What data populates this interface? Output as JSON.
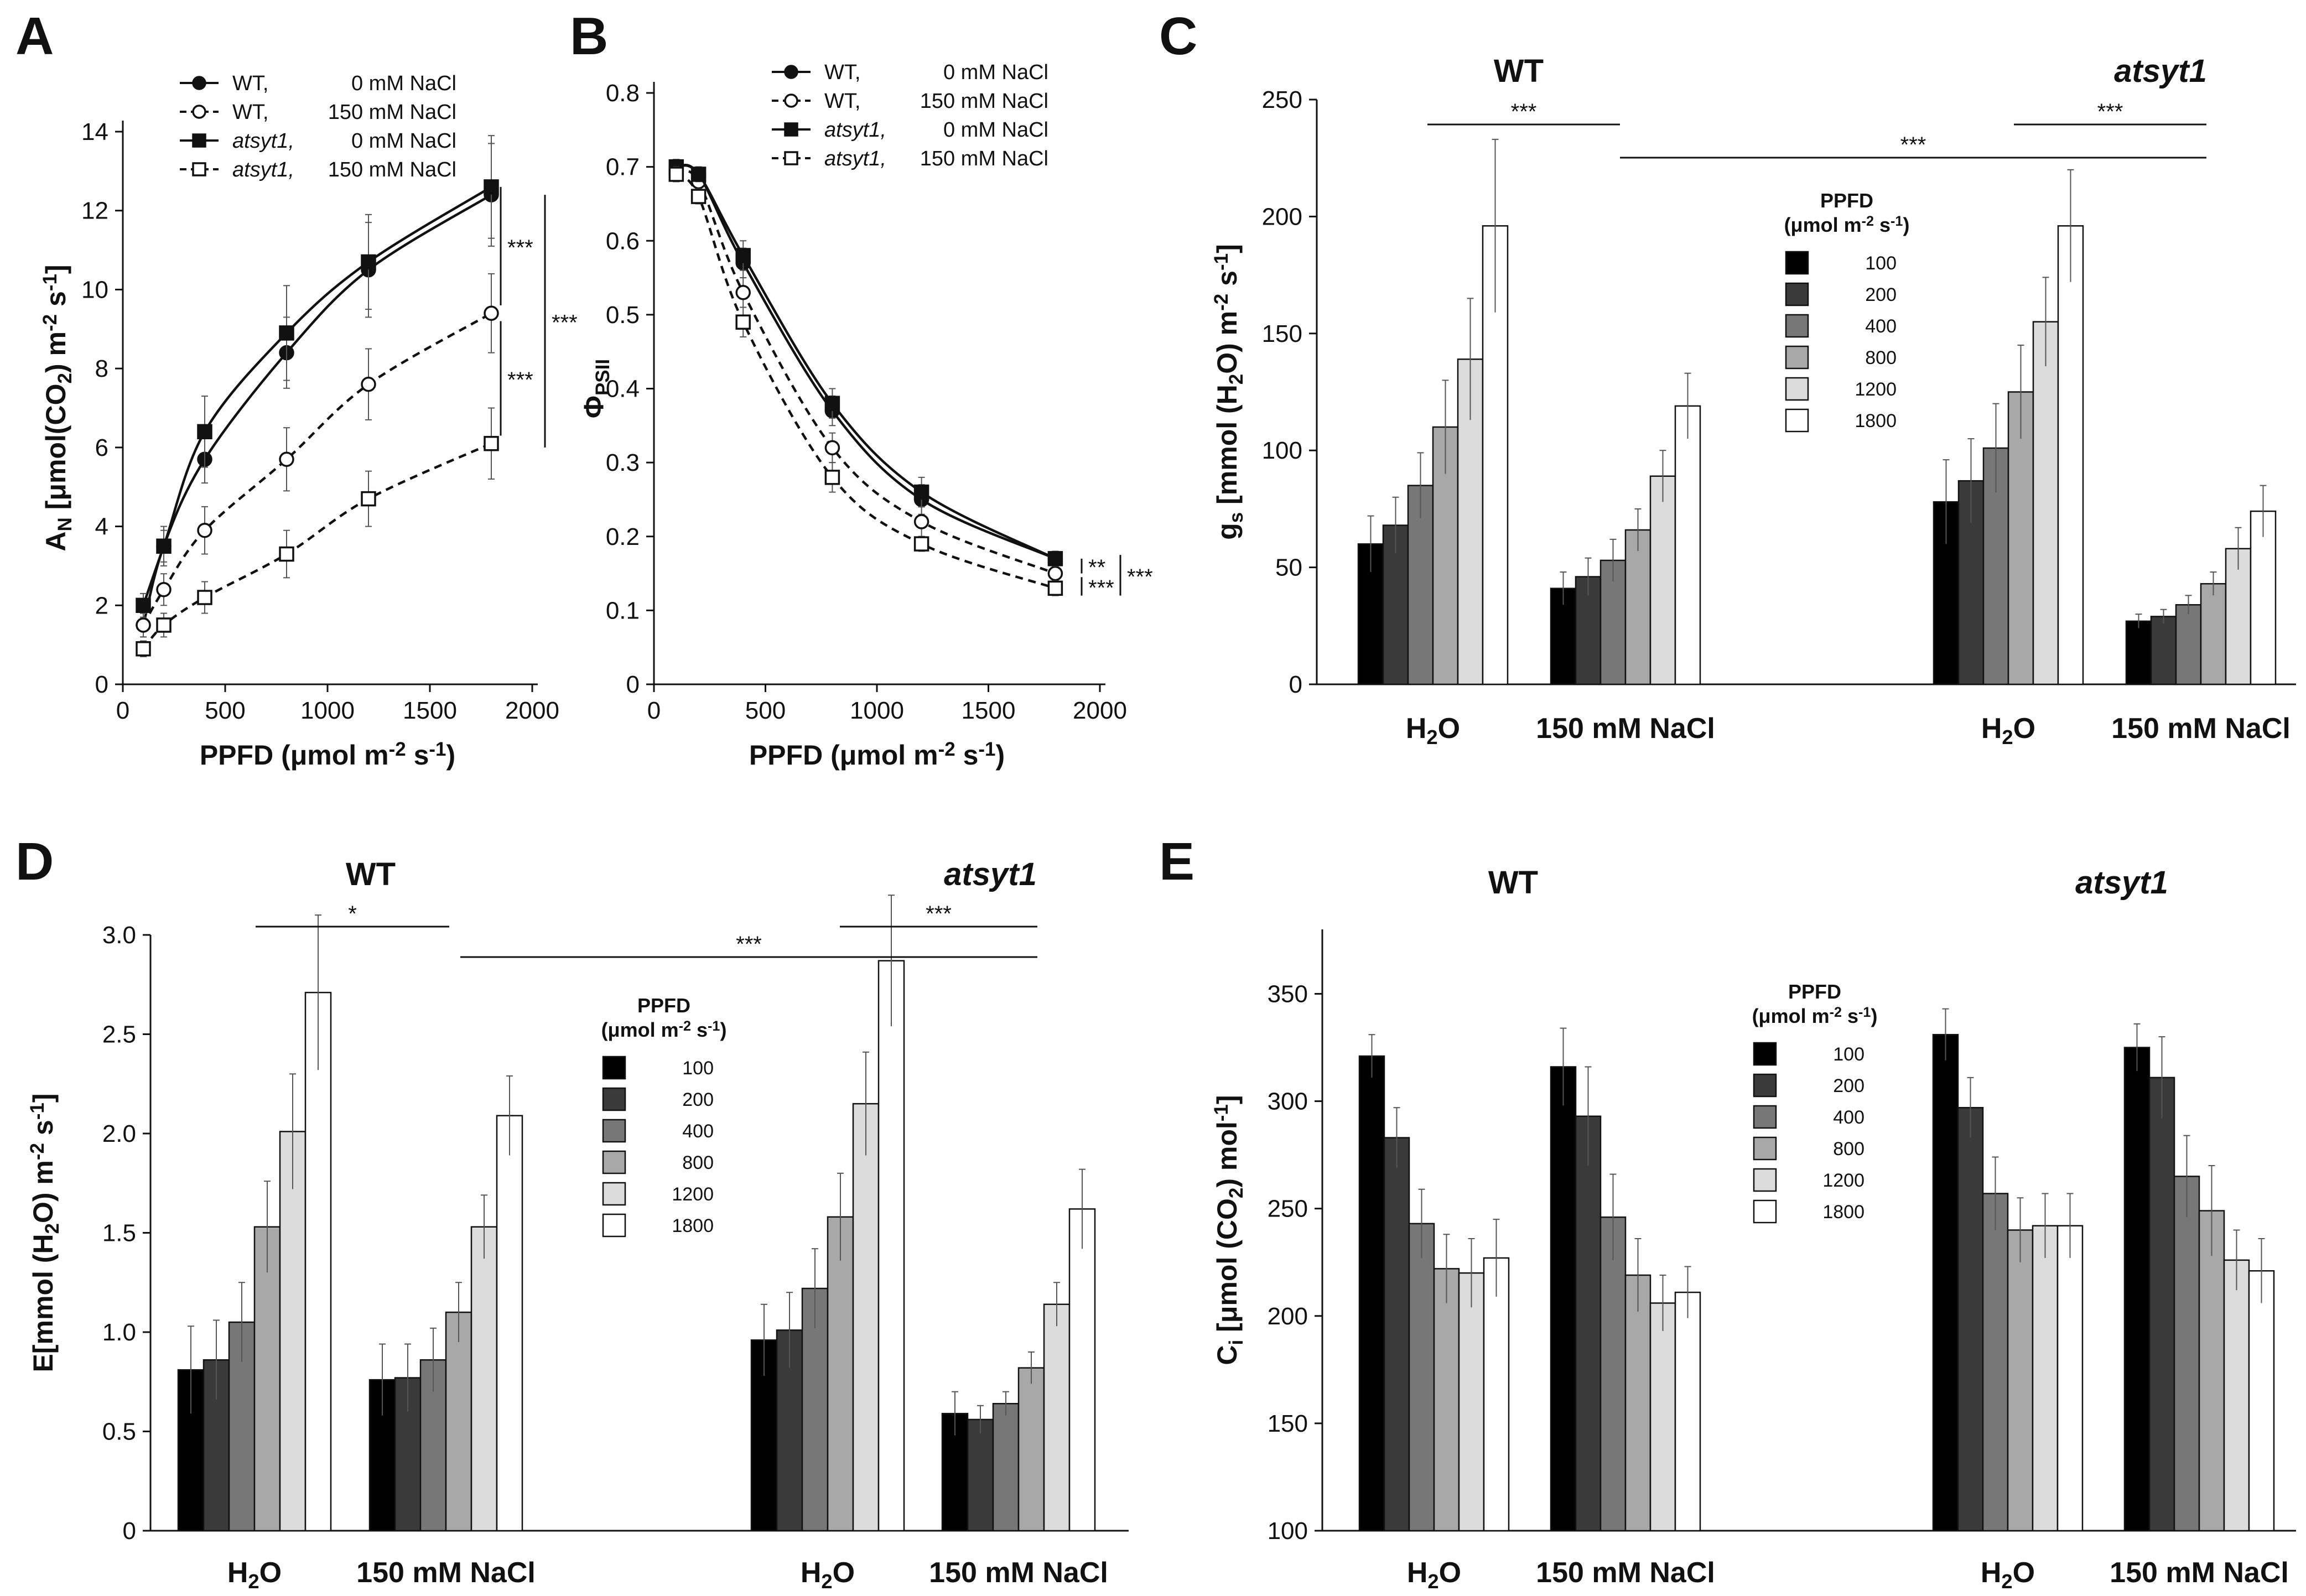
{
  "chart_data": [
    {
      "panel": "A",
      "type": "line",
      "xlabel": "PPFD (μmol m⁻² s⁻¹)",
      "ylabel": "A_N [μmol(CO₂) m⁻² s⁻¹]",
      "ylabel_parts": [
        "A",
        "N",
        " [μmol(CO",
        "2",
        ") m",
        "-2",
        " s",
        "-1",
        "]"
      ],
      "xlim": [
        0,
        2000
      ],
      "ylim": [
        0,
        14
      ],
      "xticks": [
        0,
        500,
        1000,
        1500,
        2000
      ],
      "yticks": [
        0,
        2,
        4,
        6,
        8,
        10,
        12,
        14
      ],
      "x": [
        100,
        200,
        400,
        800,
        1200,
        1800
      ],
      "series": [
        {
          "name": "WT, 0 mM NaCl",
          "line": "solid",
          "marker": "circle",
          "filled": true,
          "values": [
            1.5,
            3.5,
            5.7,
            8.4,
            10.5,
            12.4
          ],
          "errors": [
            0.3,
            0.4,
            0.6,
            0.9,
            1.2,
            1.3
          ]
        },
        {
          "name": "WT, 150 mM NaCl",
          "line": "dashed",
          "marker": "circle",
          "filled": false,
          "values": [
            1.5,
            2.4,
            3.9,
            5.7,
            7.6,
            9.4
          ],
          "errors": [
            0.3,
            0.4,
            0.6,
            0.8,
            0.9,
            1.0
          ]
        },
        {
          "name": "atsyt1, 0 mM NaCl",
          "line": "solid",
          "marker": "square",
          "filled": true,
          "values": [
            2.0,
            3.5,
            6.4,
            8.9,
            10.7,
            12.6
          ],
          "errors": [
            0.3,
            0.5,
            0.9,
            1.2,
            1.2,
            1.3
          ]
        },
        {
          "name": "atsyt1, 150 mM NaCl",
          "line": "dashed",
          "marker": "square",
          "filled": false,
          "values": [
            0.9,
            1.5,
            2.2,
            3.3,
            4.7,
            6.1
          ],
          "errors": [
            0.2,
            0.3,
            0.4,
            0.6,
            0.7,
            0.9
          ]
        }
      ],
      "legend": [
        {
          "name": "WT,",
          "cond": "0 mM NaCl",
          "italic": false
        },
        {
          "name": "WT,",
          "cond": "150 mM NaCl",
          "italic": false
        },
        {
          "name": "atsyt1,",
          "cond": "0 mM NaCl",
          "italic": true
        },
        {
          "name": "atsyt1,",
          "cond": "150 mM NaCl",
          "italic": true
        }
      ],
      "significance": [
        "***",
        "***",
        "***"
      ]
    },
    {
      "panel": "B",
      "type": "line",
      "xlabel": "PPFD (μmol m⁻² s⁻¹)",
      "ylabel": "ΦPSII",
      "ylabel_parts": [
        "Φ",
        "PSII"
      ],
      "xlim": [
        0,
        2000
      ],
      "ylim": [
        0,
        0.8
      ],
      "xticks": [
        0,
        500,
        1000,
        1500,
        2000
      ],
      "yticks": [
        0,
        0.1,
        0.2,
        0.3,
        0.4,
        0.5,
        0.6,
        0.7,
        0.8
      ],
      "x": [
        100,
        200,
        400,
        800,
        1200,
        1800
      ],
      "series": [
        {
          "name": "WT, 0 mM NaCl",
          "line": "solid",
          "marker": "circle",
          "filled": true,
          "values": [
            0.7,
            0.69,
            0.57,
            0.37,
            0.25,
            0.17
          ],
          "errors": [
            0.01,
            0.01,
            0.02,
            0.02,
            0.02,
            0.01
          ]
        },
        {
          "name": "WT, 150 mM NaCl",
          "line": "dashed",
          "marker": "circle",
          "filled": false,
          "values": [
            0.69,
            0.68,
            0.53,
            0.32,
            0.22,
            0.15
          ],
          "errors": [
            0.01,
            0.01,
            0.02,
            0.02,
            0.02,
            0.01
          ]
        },
        {
          "name": "atsyt1, 0 mM NaCl",
          "line": "solid",
          "marker": "square",
          "filled": true,
          "values": [
            0.7,
            0.69,
            0.58,
            0.38,
            0.26,
            0.17
          ],
          "errors": [
            0.01,
            0.01,
            0.02,
            0.02,
            0.02,
            0.01
          ]
        },
        {
          "name": "atsyt1, 150 mM NaCl",
          "line": "dashed",
          "marker": "square",
          "filled": false,
          "values": [
            0.69,
            0.66,
            0.49,
            0.28,
            0.19,
            0.13
          ],
          "errors": [
            0.01,
            0.01,
            0.02,
            0.02,
            0.01,
            0.01
          ]
        }
      ],
      "legend": [
        {
          "name": "WT,",
          "cond": "0 mM NaCl",
          "italic": false
        },
        {
          "name": "WT,",
          "cond": "150 mM NaCl",
          "italic": false
        },
        {
          "name": "atsyt1,",
          "cond": "0 mM NaCl",
          "italic": true
        },
        {
          "name": "atsyt1,",
          "cond": "150 mM NaCl",
          "italic": true
        }
      ],
      "significance": [
        "**",
        "***",
        "***"
      ]
    },
    {
      "panel": "C",
      "type": "bar",
      "ylabel": "gs [mmol (H₂O) m⁻² s⁻¹]",
      "ylabel_parts": [
        "g",
        "s",
        " [mmol (H",
        "2",
        "O) m",
        "-2",
        " s",
        "-1",
        "]"
      ],
      "ylim": [
        0,
        250
      ],
      "yticks": [
        0,
        50,
        100,
        150,
        200,
        250
      ],
      "ppfd_levels": [
        "100",
        "200",
        "400",
        "800",
        "1200",
        "1800"
      ],
      "ppfd_title": "PPFD",
      "ppfd_units": [
        "(μmol m",
        "-2",
        " s",
        "-1",
        ")"
      ],
      "genotypes": [
        "WT",
        "atsyt1"
      ],
      "treatments": [
        "H2O",
        "150 mM NaCl"
      ],
      "groups": [
        {
          "genotype": "WT",
          "treatment": "H2O",
          "values": [
            60,
            68,
            85,
            110,
            139,
            196
          ],
          "errors": [
            12,
            12,
            14,
            20,
            26,
            37
          ]
        },
        {
          "genotype": "WT",
          "treatment": "150 mM NaCl",
          "values": [
            41,
            46,
            53,
            66,
            89,
            119
          ],
          "errors": [
            7,
            8,
            9,
            9,
            11,
            14
          ]
        },
        {
          "genotype": "atsyt1",
          "treatment": "H2O",
          "values": [
            78,
            87,
            101,
            125,
            155,
            196
          ],
          "errors": [
            18,
            18,
            19,
            20,
            19,
            24
          ]
        },
        {
          "genotype": "atsyt1",
          "treatment": "150 mM NaCl",
          "values": [
            27,
            29,
            34,
            43,
            58,
            74
          ],
          "errors": [
            3,
            3,
            4,
            5,
            9,
            11
          ]
        }
      ],
      "significance": [
        "***",
        "***",
        "***"
      ]
    },
    {
      "panel": "D",
      "type": "bar",
      "ylabel": "E[mmol (H₂O) m⁻² s⁻¹]",
      "ylabel_parts": [
        "E[mmol (H",
        "2",
        "O) m",
        "-2",
        " s",
        "-1",
        "]"
      ],
      "ylim": [
        0,
        3.0
      ],
      "yticks": [
        "0",
        "0.5",
        "1.0",
        "1.5",
        "2.0",
        "2.5",
        "3.0"
      ],
      "ppfd_levels": [
        "100",
        "200",
        "400",
        "800",
        "1200",
        "1800"
      ],
      "ppfd_title": "PPFD",
      "ppfd_units": [
        "(μmol m",
        "-2",
        " s",
        "-1",
        ")"
      ],
      "genotypes": [
        "WT",
        "atsyt1"
      ],
      "treatments": [
        "H2O",
        "150 mM NaCl"
      ],
      "groups": [
        {
          "genotype": "WT",
          "treatment": "H2O",
          "values": [
            0.81,
            0.86,
            1.05,
            1.53,
            2.01,
            2.71
          ],
          "errors": [
            0.22,
            0.2,
            0.2,
            0.23,
            0.29,
            0.39
          ]
        },
        {
          "genotype": "WT",
          "treatment": "150 mM NaCl",
          "values": [
            0.76,
            0.77,
            0.86,
            1.1,
            1.53,
            2.09
          ],
          "errors": [
            0.18,
            0.17,
            0.16,
            0.15,
            0.16,
            0.2
          ]
        },
        {
          "genotype": "atsyt1",
          "treatment": "H2O",
          "values": [
            0.96,
            1.01,
            1.22,
            1.58,
            2.15,
            2.87
          ],
          "errors": [
            0.18,
            0.19,
            0.2,
            0.22,
            0.26,
            0.33
          ]
        },
        {
          "genotype": "atsyt1",
          "treatment": "150 mM NaCl",
          "values": [
            0.59,
            0.56,
            0.64,
            0.82,
            1.14,
            1.62
          ],
          "errors": [
            0.11,
            0.07,
            0.06,
            0.08,
            0.11,
            0.2
          ]
        }
      ],
      "significance": [
        "*",
        "***",
        "***"
      ]
    },
    {
      "panel": "E",
      "type": "bar",
      "ylabel": "Ci [μmol (CO₂) mol⁻¹]",
      "ylabel_parts": [
        "C",
        "i",
        " [μmol (CO",
        "2",
        ") mol",
        "-1",
        "]"
      ],
      "ylim": [
        100,
        380
      ],
      "yticks": [
        100,
        150,
        200,
        250,
        300,
        350
      ],
      "ppfd_levels": [
        "100",
        "200",
        "400",
        "800",
        "1200",
        "1800"
      ],
      "ppfd_title": "PPFD",
      "ppfd_units": [
        "(μmol m",
        "-2",
        " s",
        "-1",
        ")"
      ],
      "genotypes": [
        "WT",
        "atsyt1"
      ],
      "treatments": [
        "H2O",
        "150 mM NaCl"
      ],
      "groups": [
        {
          "genotype": "WT",
          "treatment": "H2O",
          "values": [
            321,
            283,
            243,
            222,
            220,
            227
          ],
          "errors": [
            10,
            14,
            16,
            16,
            16,
            18
          ]
        },
        {
          "genotype": "WT",
          "treatment": "150 mM NaCl",
          "values": [
            316,
            293,
            246,
            219,
            206,
            211
          ],
          "errors": [
            18,
            23,
            20,
            17,
            13,
            12
          ]
        },
        {
          "genotype": "atsyt1",
          "treatment": "H2O",
          "values": [
            331,
            297,
            257,
            240,
            242,
            242
          ],
          "errors": [
            12,
            14,
            17,
            15,
            15,
            15
          ]
        },
        {
          "genotype": "atsyt1",
          "treatment": "150 mM NaCl",
          "values": [
            325,
            311,
            265,
            249,
            226,
            221
          ],
          "errors": [
            11,
            19,
            19,
            21,
            14,
            15
          ]
        }
      ]
    }
  ],
  "colors": {
    "ppfd_fills": [
      "#000000",
      "#3a3a3a",
      "#777777",
      "#a8a8a8",
      "#dcdcdc",
      "#ffffff"
    ],
    "ink": "#111111"
  }
}
